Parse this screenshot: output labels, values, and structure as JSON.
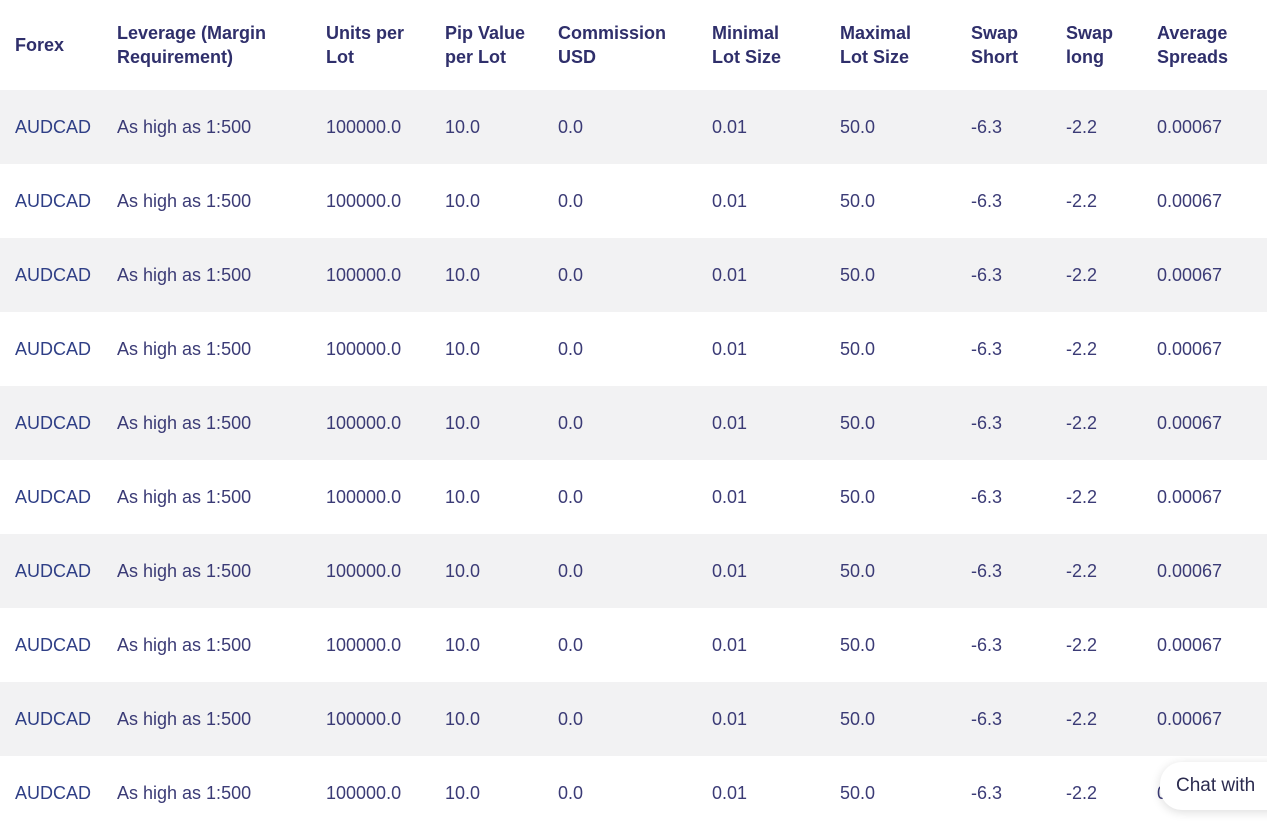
{
  "table": {
    "headers": [
      [
        "Forex"
      ],
      [
        "Leverage (Margin",
        "Requirement)"
      ],
      [
        "Units per",
        "Lot"
      ],
      [
        "Pip Value",
        "per Lot"
      ],
      [
        "Commission",
        "USD"
      ],
      [
        "Minimal",
        "Lot Size"
      ],
      [
        "Maximal",
        "Lot Size"
      ],
      [
        "Swap",
        "Short"
      ],
      [
        "Swap",
        "long"
      ],
      [
        "Average",
        "Spreads"
      ]
    ],
    "rows": [
      [
        "AUDCAD",
        "As high as 1:500",
        "100000.0",
        "10.0",
        "0.0",
        "0.01",
        "50.0",
        "-6.3",
        "-2.2",
        "0.00067"
      ],
      [
        "AUDCAD",
        "As high as 1:500",
        "100000.0",
        "10.0",
        "0.0",
        "0.01",
        "50.0",
        "-6.3",
        "-2.2",
        "0.00067"
      ],
      [
        "AUDCAD",
        "As high as 1:500",
        "100000.0",
        "10.0",
        "0.0",
        "0.01",
        "50.0",
        "-6.3",
        "-2.2",
        "0.00067"
      ],
      [
        "AUDCAD",
        "As high as 1:500",
        "100000.0",
        "10.0",
        "0.0",
        "0.01",
        "50.0",
        "-6.3",
        "-2.2",
        "0.00067"
      ],
      [
        "AUDCAD",
        "As high as 1:500",
        "100000.0",
        "10.0",
        "0.0",
        "0.01",
        "50.0",
        "-6.3",
        "-2.2",
        "0.00067"
      ],
      [
        "AUDCAD",
        "As high as 1:500",
        "100000.0",
        "10.0",
        "0.0",
        "0.01",
        "50.0",
        "-6.3",
        "-2.2",
        "0.00067"
      ],
      [
        "AUDCAD",
        "As high as 1:500",
        "100000.0",
        "10.0",
        "0.0",
        "0.01",
        "50.0",
        "-6.3",
        "-2.2",
        "0.00067"
      ],
      [
        "AUDCAD",
        "As high as 1:500",
        "100000.0",
        "10.0",
        "0.0",
        "0.01",
        "50.0",
        "-6.3",
        "-2.2",
        "0.00067"
      ],
      [
        "AUDCAD",
        "As high as 1:500",
        "100000.0",
        "10.0",
        "0.0",
        "0.01",
        "50.0",
        "-6.3",
        "-2.2",
        "0.00067"
      ],
      [
        "AUDCAD",
        "As high as 1:500",
        "100000.0",
        "10.0",
        "0.0",
        "0.01",
        "50.0",
        "-6.3",
        "-2.2",
        "0.00067"
      ]
    ]
  },
  "chat": {
    "label": "Chat with"
  },
  "colors": {
    "header_text": "#2f2f6b",
    "cell_text": "#3b3b76",
    "stripe": "#f2f2f3"
  }
}
